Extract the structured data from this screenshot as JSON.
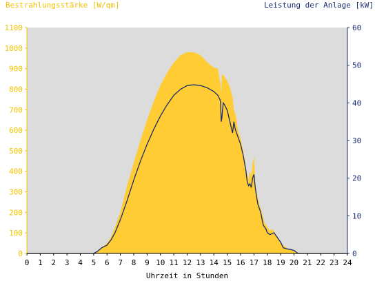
{
  "chart_data": {
    "type": "area",
    "title": "",
    "ylabel_left": "Bestrahlungsstärke [W/qm]",
    "ylabel_right": "Leistung der Anlage [kW]",
    "xlabel": "Uhrzeit in Stunden",
    "xlim": [
      0,
      24
    ],
    "ylim_left": [
      0,
      1100
    ],
    "ylim_right": [
      0,
      60
    ],
    "x_ticks": [
      "0",
      "1",
      "2",
      "3",
      "4",
      "5",
      "6",
      "7",
      "8",
      "9",
      "10",
      "11",
      "12",
      "13",
      "14",
      "15",
      "16",
      "17",
      "18",
      "19",
      "20",
      "21",
      "22",
      "23",
      "24"
    ],
    "y_left_ticks": [
      "0",
      "100",
      "200",
      "300",
      "400",
      "500",
      "600",
      "700",
      "800",
      "900",
      "1000",
      "1100"
    ],
    "y_right_ticks": [
      "0",
      "10",
      "20",
      "30",
      "40",
      "50",
      "60"
    ],
    "grid": false,
    "colors": {
      "irradiance_fill": "#ffcc33",
      "power_line": "#1a2a6c",
      "plot_background": "#dcdcdc",
      "left_axis_text": "#f2c200",
      "right_axis_text": "#1a2a6c"
    },
    "series": [
      {
        "axis": "left",
        "style": "area",
        "x": [
          0,
          5,
          5.3,
          5.6,
          6.0,
          6.3,
          6.6,
          7.0,
          7.5,
          8.0,
          8.5,
          9.0,
          9.5,
          10.0,
          10.5,
          11.0,
          11.5,
          12.0,
          12.3,
          12.6,
          13.0,
          13.3,
          13.6,
          14.0,
          14.3,
          14.5,
          14.55,
          14.6,
          14.7,
          14.8,
          15.0,
          15.2,
          15.4,
          15.5,
          15.6,
          15.7,
          15.8,
          16.0,
          16.2,
          16.4,
          16.5,
          16.6,
          16.7,
          16.8,
          16.9,
          17.0,
          17.05,
          17.1,
          17.2,
          17.3,
          17.4,
          17.5,
          17.6,
          17.7,
          17.8,
          18.0,
          18.2,
          18.3,
          18.5,
          18.7,
          18.9,
          19.0,
          19.2,
          19.5,
          19.8,
          20.0,
          20.2,
          20.5,
          24
        ],
        "values": [
          0,
          0,
          10,
          30,
          50,
          80,
          130,
          200,
          330,
          440,
          550,
          650,
          740,
          820,
          880,
          930,
          965,
          980,
          980,
          978,
          965,
          945,
          925,
          905,
          900,
          820,
          780,
          870,
          870,
          860,
          840,
          810,
          760,
          700,
          680,
          650,
          600,
          560,
          500,
          420,
          380,
          360,
          400,
          380,
          440,
          470,
          420,
          340,
          300,
          270,
          240,
          220,
          200,
          170,
          150,
          130,
          110,
          120,
          110,
          80,
          60,
          50,
          40,
          25,
          15,
          10,
          5,
          0,
          0
        ]
      },
      {
        "axis": "right",
        "style": "line",
        "x": [
          0,
          5,
          5.3,
          5.6,
          6.0,
          6.3,
          6.6,
          7.0,
          7.5,
          8.0,
          8.5,
          9.0,
          9.5,
          10.0,
          10.5,
          11.0,
          11.5,
          12.0,
          12.5,
          13.0,
          13.5,
          14.0,
          14.3,
          14.5,
          14.55,
          14.6,
          14.7,
          14.8,
          15.0,
          15.2,
          15.4,
          15.5,
          15.6,
          15.8,
          16.0,
          16.2,
          16.4,
          16.5,
          16.6,
          16.7,
          16.8,
          16.9,
          17.0,
          17.1,
          17.2,
          17.3,
          17.5,
          17.7,
          17.9,
          18.0,
          18.2,
          18.5,
          18.8,
          19.0,
          19.2,
          19.5,
          19.8,
          20.0,
          20.3,
          24
        ],
        "values": [
          0,
          0,
          0.6,
          1.5,
          2.2,
          3.6,
          5.5,
          9.0,
          14.0,
          19.5,
          24.5,
          29.0,
          33.0,
          36.5,
          39.5,
          42.0,
          43.6,
          44.6,
          44.8,
          44.6,
          44.0,
          43.0,
          42.0,
          40.5,
          35.0,
          36.0,
          40.0,
          39.5,
          38.0,
          35.0,
          32.0,
          35.0,
          33.0,
          31.0,
          29.0,
          26.0,
          22.0,
          19.0,
          18.0,
          18.5,
          17.5,
          20.0,
          21.0,
          17.5,
          15.0,
          13.0,
          11.0,
          7.5,
          6.5,
          5.5,
          5.0,
          5.5,
          4.0,
          3.0,
          1.5,
          1.2,
          1.0,
          0.8,
          0,
          0
        ]
      }
    ]
  }
}
